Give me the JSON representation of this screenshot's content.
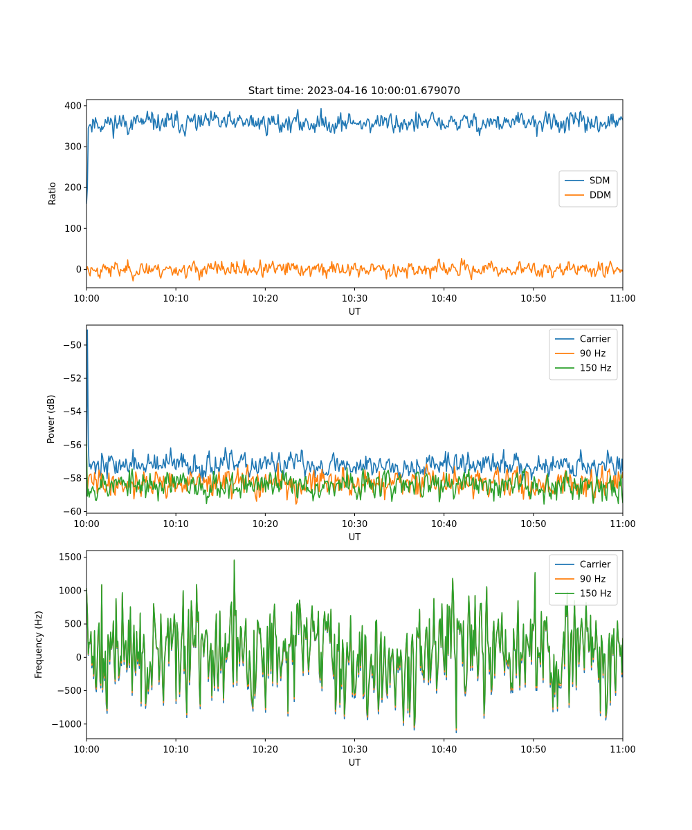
{
  "figure": {
    "title": "Start time: 2023-04-16 10:00:01.679070"
  },
  "colors": {
    "blue": "#1f77b4",
    "orange": "#ff7f0e",
    "green": "#2ca02c"
  },
  "chart_data": [
    {
      "type": "line",
      "title": "Start time: 2023-04-16 10:00:01.679070",
      "xlabel": "UT",
      "ylabel": "Ratio",
      "xlim": [
        "10:00",
        "11:00"
      ],
      "xticks": [
        "10:00",
        "10:10",
        "10:20",
        "10:30",
        "10:40",
        "10:50",
        "11:00"
      ],
      "ylim": [
        -45,
        415
      ],
      "yticks": [
        0,
        100,
        200,
        300,
        400
      ],
      "legend": "center-right",
      "series": [
        {
          "name": "SDM",
          "color": "#1f77b4",
          "noise": {
            "seed": 11,
            "base": 358,
            "amp": 12,
            "start": [
              160,
              200
            ]
          },
          "approx_range": [
            320,
            392
          ]
        },
        {
          "name": "DDM",
          "color": "#ff7f0e",
          "noise": {
            "seed": 23,
            "base": 0,
            "amp": 9,
            "start": [
              -3
            ]
          },
          "approx_range": [
            -25,
            25
          ]
        }
      ]
    },
    {
      "type": "line",
      "title": "",
      "xlabel": "UT",
      "ylabel": "Power (dB)",
      "xlim": [
        "10:00",
        "11:00"
      ],
      "xticks": [
        "10:00",
        "10:10",
        "10:20",
        "10:30",
        "10:40",
        "10:50",
        "11:00"
      ],
      "ylim": [
        -60.1,
        -48.8
      ],
      "yticks": [
        -60,
        -58,
        -56,
        -54,
        -52,
        -50
      ],
      "legend": "top-right",
      "series": [
        {
          "name": "Carrier",
          "color": "#1f77b4",
          "noise": {
            "seed": 37,
            "base": -57.2,
            "amp": 0.35,
            "start": [
              -57.0,
              -49.1,
              -56.0
            ]
          },
          "approx_range": [
            -57.8,
            -56.4
          ]
        },
        {
          "name": "90 Hz",
          "color": "#ff7f0e",
          "noise": {
            "seed": 41,
            "base": -58.3,
            "amp": 0.4,
            "start": [
              -56.4
            ]
          },
          "approx_range": [
            -59.3,
            -57.3
          ]
        },
        {
          "name": "150 Hz",
          "color": "#2ca02c",
          "noise": {
            "seed": 53,
            "base": -58.4,
            "amp": 0.4,
            "start": [
              -55.7
            ]
          },
          "approx_range": [
            -59.6,
            -57.5
          ]
        }
      ]
    },
    {
      "type": "line",
      "title": "",
      "xlabel": "UT",
      "ylabel": "Frequency (Hz)",
      "xlim": [
        "10:00",
        "11:00"
      ],
      "xticks": [
        "10:00",
        "10:10",
        "10:20",
        "10:30",
        "10:40",
        "10:50",
        "11:00"
      ],
      "ylim": [
        -1220,
        1600
      ],
      "yticks": [
        -1000,
        -500,
        0,
        500,
        1000,
        1500
      ],
      "legend": "top-right",
      "series": [
        {
          "name": "Carrier",
          "color": "#1f77b4",
          "offset_from": "150 Hz",
          "offset": -70,
          "approx_range": [
            -1100,
            1380
          ]
        },
        {
          "name": "90 Hz",
          "color": "#ff7f0e",
          "offset_from": "150 Hz",
          "offset": -30,
          "approx_range": [
            -1060,
            1430
          ]
        },
        {
          "name": "150 Hz",
          "color": "#2ca02c",
          "noise": {
            "seed": 71,
            "base": 60,
            "amp": 380,
            "start": [
              1040
            ]
          },
          "peaks": [
            {
              "t": "10:16:30",
              "v": 1460
            },
            {
              "t": "10:50:10",
              "v": 1270
            },
            {
              "t": "10:41:20",
              "v": -1060
            },
            {
              "t": "10:10:50",
              "v": 1000
            },
            {
              "t": "10:01:40",
              "v": 1090
            }
          ],
          "approx_range": [
            -1060,
            1460
          ]
        }
      ]
    }
  ]
}
